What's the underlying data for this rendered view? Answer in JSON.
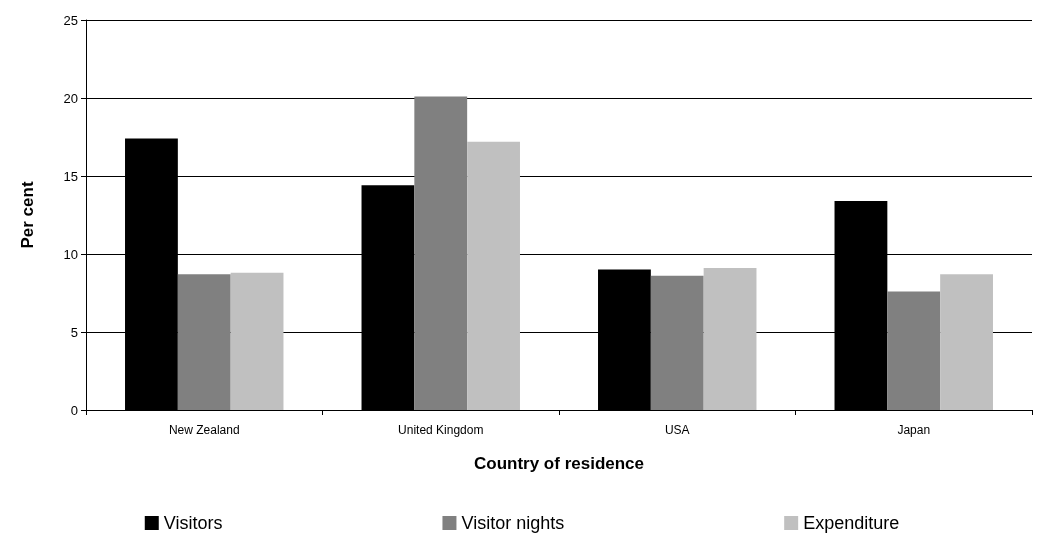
{
  "chart_data": {
    "type": "bar",
    "xlabel": "Country of residence",
    "ylabel": "Per cent",
    "categories": [
      "New Zealand",
      "United Kingdom",
      "USA",
      "Japan"
    ],
    "series": [
      {
        "name": "Visitors",
        "color": "#000000",
        "values": [
          17.4,
          14.4,
          9.0,
          13.4
        ]
      },
      {
        "name": "Visitor nights",
        "color": "#808080",
        "values": [
          8.7,
          20.1,
          8.6,
          7.6
        ]
      },
      {
        "name": "Expenditure",
        "color": "#c0c0c0",
        "values": [
          8.8,
          17.2,
          9.1,
          8.7
        ]
      }
    ],
    "ylim": [
      0,
      25
    ],
    "yticks": [
      0,
      5,
      10,
      15,
      20,
      25
    ],
    "grid": true,
    "legend": "bottom"
  }
}
